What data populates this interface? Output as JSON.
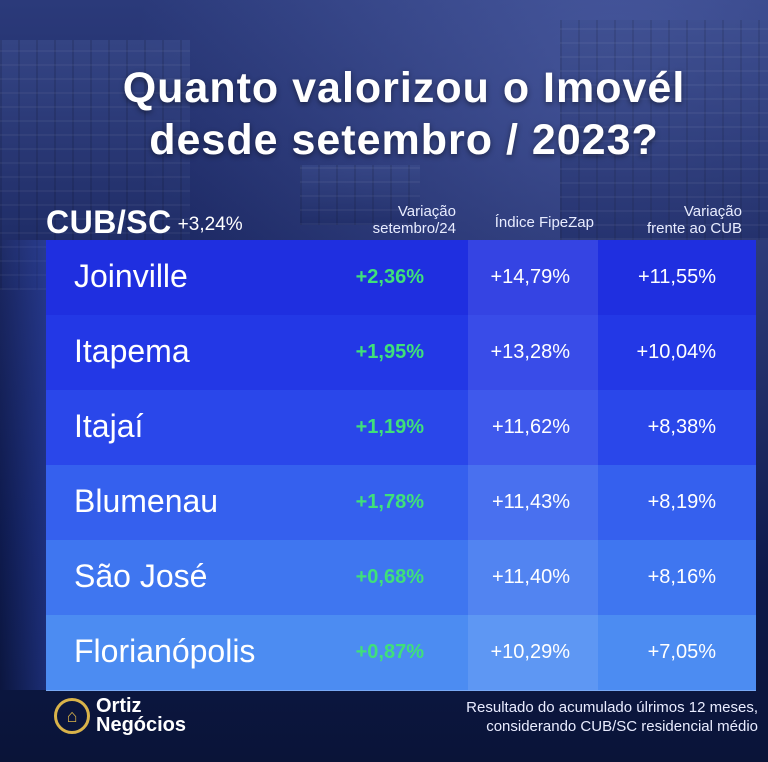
{
  "title": {
    "line1": "Quanto valorizou o Imovél",
    "line2": "desde setembro / 2023?"
  },
  "cub": {
    "label": "CUB/SC",
    "value": "+3,24%"
  },
  "columns": {
    "variacao": {
      "line1": "Variação",
      "line2": "setembro/24"
    },
    "fipezap": {
      "line1": "Índice FipeZap"
    },
    "frente_cub": {
      "line1": "Variação",
      "line2": "frente ao CUB"
    }
  },
  "rows": [
    {
      "city": "Joinville",
      "var": "+2,36%",
      "fipe": "+14,79%",
      "cub": "+11,55%",
      "color": "#1f2fe0"
    },
    {
      "city": "Itapema",
      "var": "+1,95%",
      "fipe": "+13,28%",
      "cub": "+10,04%",
      "color": "#2338e6"
    },
    {
      "city": "Itajaí",
      "var": "+1,19%",
      "fipe": "+11,62%",
      "cub": "+8,38%",
      "color": "#2a47ea"
    },
    {
      "city": "Blumenau",
      "var": "+1,78%",
      "fipe": "+11,43%",
      "cub": "+8,19%",
      "color": "#3560ee"
    },
    {
      "city": "São José",
      "var": "+0,68%",
      "fipe": "+11,40%",
      "cub": "+8,16%",
      "color": "#3f76f0"
    },
    {
      "city": "Florianópolis",
      "var": "+0,87%",
      "fipe": "+10,29%",
      "cub": "+7,05%",
      "color": "#4c8cf2"
    }
  ],
  "logo": {
    "line1": "Ortiz",
    "line2": "Negócios",
    "icon": "house-icon"
  },
  "note": {
    "line1": "Resultado do acumulado úlrimos 12 meses,",
    "line2": "considerando CUB/SC residencial médio"
  }
}
